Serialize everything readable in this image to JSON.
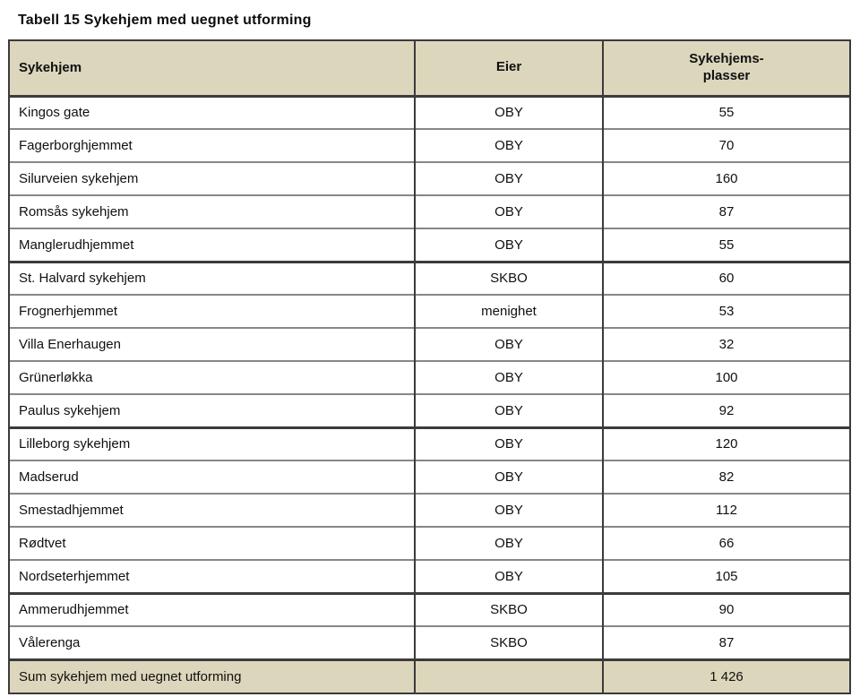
{
  "page": {
    "title": "Tabell 15 Sykehjem med uegnet utforming"
  },
  "table": {
    "columns": {
      "sykehjem": "Sykehjem",
      "eier": "Eier",
      "plasser": "Sykehjems-\nplasser"
    },
    "rows": [
      {
        "sykehjem": "Kingos gate",
        "eier": "OBY",
        "plasser": "55"
      },
      {
        "sykehjem": "Fagerborghjemmet",
        "eier": "OBY",
        "plasser": "70"
      },
      {
        "sykehjem": "Silurveien sykehjem",
        "eier": "OBY",
        "plasser": "160"
      },
      {
        "sykehjem": "Romsås sykehjem",
        "eier": "OBY",
        "plasser": "87"
      },
      {
        "sykehjem": "Manglerudhjemmet",
        "eier": "OBY",
        "plasser": "55"
      },
      {
        "sykehjem": "St. Halvard sykehjem",
        "eier": "SKBO",
        "plasser": "60"
      },
      {
        "sykehjem": "Frognerhjemmet",
        "eier": "menighet",
        "plasser": "53"
      },
      {
        "sykehjem": "Villa Enerhaugen",
        "eier": "OBY",
        "plasser": "32"
      },
      {
        "sykehjem": "Grünerløkka",
        "eier": "OBY",
        "plasser": "100"
      },
      {
        "sykehjem": "Paulus sykehjem",
        "eier": "OBY",
        "plasser": "92"
      },
      {
        "sykehjem": "Lilleborg sykehjem",
        "eier": "OBY",
        "plasser": "120"
      },
      {
        "sykehjem": "Madserud",
        "eier": "OBY",
        "plasser": "82"
      },
      {
        "sykehjem": "Smestadhjemmet",
        "eier": "OBY",
        "plasser": "112"
      },
      {
        "sykehjem": "Rødtvet",
        "eier": "OBY",
        "plasser": "66"
      },
      {
        "sykehjem": "Nordseterhjemmet",
        "eier": "OBY",
        "plasser": "105"
      },
      {
        "sykehjem": "Ammerudhjemmet",
        "eier": "SKBO",
        "plasser": "90"
      },
      {
        "sykehjem": "Vålerenga",
        "eier": "SKBO",
        "plasser": "87"
      }
    ],
    "group_end_rows": [
      4,
      9,
      14
    ],
    "sum_row": {
      "label": "Sum sykehjem med uegnet utforming",
      "eier": "",
      "plasser": "1 426"
    }
  },
  "colors": {
    "header_background": "#dcd6bc",
    "border_dark": "#3b3b3b",
    "border_light": "#878787",
    "text": "#101010"
  }
}
